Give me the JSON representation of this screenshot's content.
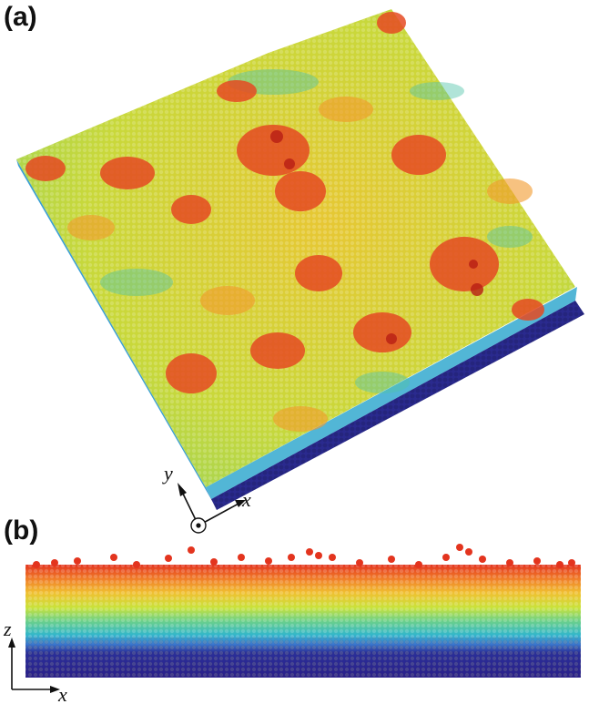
{
  "panels": [
    {
      "label": "(a)",
      "axes": {
        "a": "y",
        "b": "x"
      }
    },
    {
      "label": "(b)",
      "axes": {
        "a": "z",
        "b": "x"
      }
    }
  ],
  "colormap": [
    "#2a1f8a",
    "#3b55c8",
    "#33b7c9",
    "#6bd08a",
    "#d7e433",
    "#f0a230",
    "#e3341e"
  ]
}
